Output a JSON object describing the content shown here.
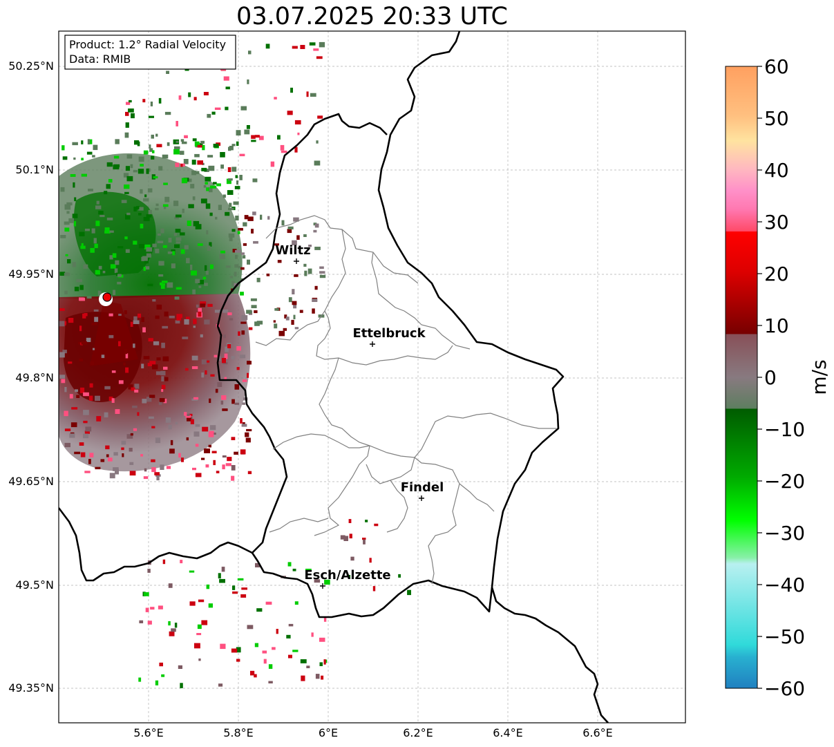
{
  "title": "03.07.2025 20:33 UTC",
  "info_box": {
    "product": "Product: 1.2° Radial Velocity",
    "data": "Data: RMIB"
  },
  "axes": {
    "lat_ticks": [
      "50.25°N",
      "50.1°N",
      "49.95°N",
      "49.8°N",
      "49.65°N",
      "49.5°N",
      "49.35°N"
    ],
    "lon_ticks": [
      "5.6°E",
      "5.8°E",
      "6°E",
      "6.2°E",
      "6.4°E",
      "6.6°E"
    ],
    "lon_range": [
      5.4,
      6.8
    ],
    "lat_range": [
      49.3,
      50.3
    ]
  },
  "cities": [
    {
      "name": "Wiltz",
      "lon": 5.93,
      "lat": 49.97
    },
    {
      "name": "Ettelbruck",
      "lon": 6.1,
      "lat": 49.85
    },
    {
      "name": "Findel",
      "lon": 6.21,
      "lat": 49.63
    },
    {
      "name": "Esch/Alzette",
      "lon": 5.99,
      "lat": 49.5
    }
  ],
  "radar_site": {
    "lon": 5.51,
    "lat": 49.92
  },
  "colorbar": {
    "label": "m/s",
    "ticks": [
      "60",
      "50",
      "40",
      "30",
      "20",
      "10",
      "0",
      "−10",
      "−20",
      "−30",
      "−40",
      "−50",
      "−60"
    ],
    "range": [
      -60,
      60
    ],
    "colors": {
      "c60": "#ffa060",
      "c50": "#ffd090",
      "c45": "#ffe3a0",
      "c40": "#ffb0c0",
      "c35": "#ff88c8",
      "c30": "#ff5070",
      "c25": "#ff0000",
      "c20": "#dd0000",
      "c10": "#770000",
      "c5": "#885058",
      "c0": "#887a80",
      "cm5": "#5e8060",
      "cm10": "#006600",
      "cm20": "#00aa00",
      "cm28": "#00ff00",
      "cm32": "#88f8a8",
      "cm38": "#b8f0f0",
      "cm50": "#30d8d8",
      "cm60": "#2080c0"
    }
  },
  "echo_colors": {
    "green_dark": "#007000",
    "green_grey": "#5a7c5a",
    "grey": "#887880",
    "red_dark": "#7a0000",
    "red": "#cc0010",
    "green_bright": "#00cc00",
    "pink": "#ff5080",
    "mauve": "#7d5a62"
  }
}
